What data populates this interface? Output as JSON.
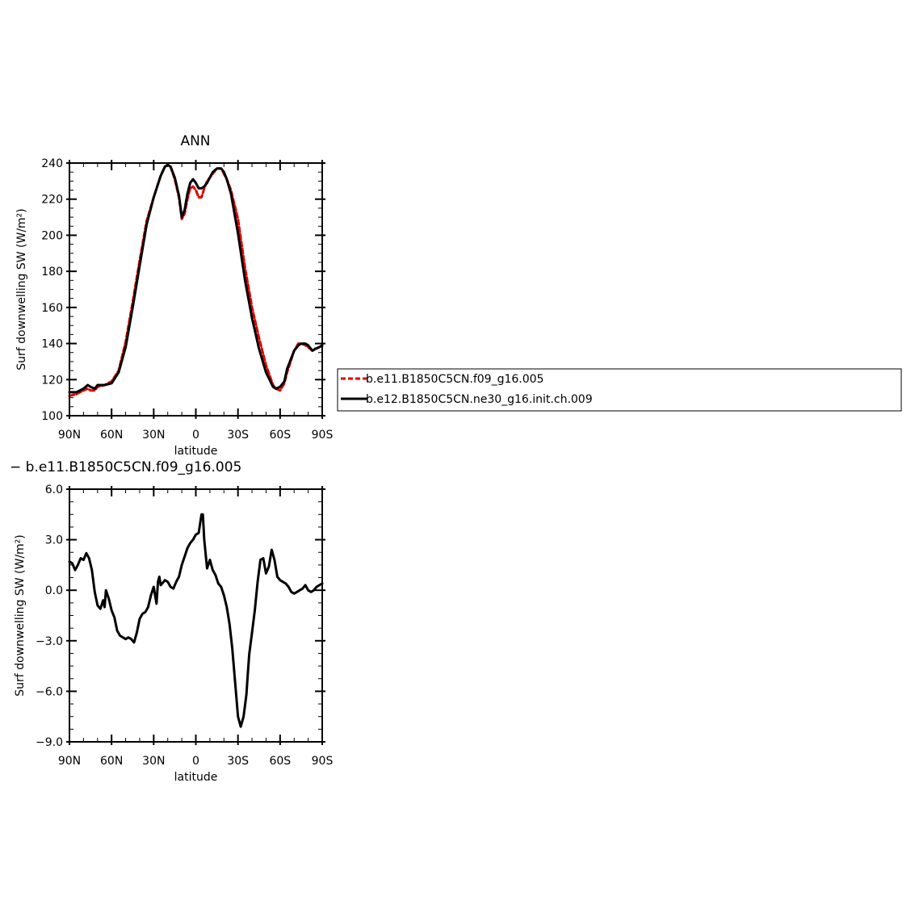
{
  "chart_data": [
    {
      "type": "line",
      "title": "ANN",
      "xlabel": "latitude",
      "ylabel": "Surf downwelling SW (W/m²)",
      "xlim": [
        90,
        -90
      ],
      "ylim": [
        100,
        240
      ],
      "xticks": [
        90,
        60,
        30,
        0,
        -30,
        -60,
        -90
      ],
      "xtick_labels": [
        "90N",
        "60N",
        "30N",
        "0",
        "30S",
        "60S",
        "90S"
      ],
      "yticks": [
        100,
        120,
        140,
        160,
        180,
        200,
        220,
        240
      ],
      "ytick_labels": [
        "100",
        "120",
        "140",
        "160",
        "180",
        "200",
        "220",
        "240"
      ],
      "grid": false,
      "legend_position": "right",
      "series": [
        {
          "name": "b.e11.B1850C5CN.f09_g16.005",
          "color": "#e00000",
          "dash": "dashed",
          "x": [
            90,
            85,
            80,
            77,
            75,
            72,
            70,
            65,
            60,
            55,
            50,
            45,
            40,
            35,
            30,
            25,
            22,
            20,
            18,
            15,
            12,
            10,
            8,
            6,
            4,
            2,
            0,
            -2,
            -4,
            -6,
            -8,
            -10,
            -12,
            -15,
            -18,
            -20,
            -22,
            -25,
            -30,
            -35,
            -40,
            -45,
            -50,
            -55,
            -57,
            -60,
            -63,
            -65,
            -70,
            -73,
            -75,
            -78,
            -80,
            -83,
            -85,
            -88,
            -90
          ],
          "y": [
            111,
            112,
            114,
            115,
            114,
            114,
            116,
            117,
            119,
            125,
            141,
            163,
            186,
            208,
            221,
            233,
            238,
            239,
            238,
            231,
            221,
            209,
            212,
            220,
            226,
            227,
            225,
            221,
            221,
            226,
            230,
            232,
            234,
            237,
            237,
            234,
            231,
            225,
            209,
            182,
            160,
            143,
            128,
            117,
            115,
            114,
            118,
            124,
            136,
            140,
            140,
            139,
            138,
            136,
            137,
            138,
            139
          ]
        },
        {
          "name": "b.e12.B1850C5CN.ne30_g16.init.ch.009",
          "color": "#000000",
          "dash": "solid",
          "x": [
            90,
            85,
            80,
            77,
            75,
            72,
            70,
            65,
            60,
            55,
            50,
            45,
            40,
            35,
            30,
            25,
            22,
            20,
            18,
            15,
            12,
            10,
            8,
            6,
            4,
            2,
            0,
            -2,
            -4,
            -6,
            -8,
            -10,
            -12,
            -15,
            -18,
            -20,
            -22,
            -25,
            -30,
            -35,
            -40,
            -45,
            -50,
            -55,
            -57,
            -60,
            -63,
            -65,
            -70,
            -73,
            -75,
            -78,
            -80,
            -83,
            -85,
            -88,
            -90
          ],
          "y": [
            113,
            113,
            115,
            117,
            116,
            115,
            117,
            117,
            118,
            124,
            138,
            160,
            183,
            206,
            221,
            233,
            238,
            239,
            238,
            232,
            222,
            210,
            214,
            223,
            229,
            231,
            229,
            226,
            226,
            227,
            229,
            232,
            235,
            237,
            237,
            235,
            231,
            223,
            201,
            175,
            154,
            137,
            124,
            116,
            115,
            116,
            119,
            126,
            136,
            139,
            140,
            140,
            139,
            136,
            137,
            138,
            139
          ]
        }
      ]
    },
    {
      "type": "line",
      "title": "− b.e11.B1850C5CN.f09_g16.005",
      "xlabel": "latitude",
      "ylabel": "Surf downwelling SW (W/m²)",
      "xlim": [
        90,
        -90
      ],
      "ylim": [
        -9.0,
        6.0
      ],
      "xticks": [
        90,
        60,
        30,
        0,
        -30,
        -60,
        -90
      ],
      "xtick_labels": [
        "90N",
        "60N",
        "30N",
        "0",
        "30S",
        "60S",
        "90S"
      ],
      "yticks": [
        -9.0,
        -6.0,
        -3.0,
        0.0,
        3.0,
        6.0
      ],
      "ytick_labels": [
        "−9.0",
        "−6.0",
        "−3.0",
        "0.0",
        "3.0",
        "6.0"
      ],
      "grid": false,
      "series": [
        {
          "color": "#000000",
          "dash": "solid",
          "x": [
            90,
            88,
            86,
            84,
            82,
            80,
            78,
            76,
            74,
            72,
            70,
            68,
            66,
            65,
            64,
            62,
            60,
            58,
            56,
            54,
            52,
            50,
            48,
            46,
            44,
            42,
            40,
            38,
            36,
            34,
            32,
            30,
            28,
            27,
            26,
            25,
            24,
            22,
            20,
            18,
            16,
            14,
            12,
            10,
            8,
            6,
            4,
            2,
            0,
            -2,
            -4,
            -5,
            -6,
            -8,
            -10,
            -12,
            -14,
            -16,
            -18,
            -20,
            -22,
            -24,
            -26,
            -28,
            -30,
            -32,
            -34,
            -36,
            -37,
            -38,
            -40,
            -42,
            -44,
            -46,
            -48,
            -50,
            -52,
            -54,
            -56,
            -58,
            -60,
            -62,
            -64,
            -66,
            -68,
            -70,
            -72,
            -74,
            -76,
            -78,
            -80,
            -82,
            -84,
            -86,
            -88,
            -90
          ],
          "y": [
            1.7,
            1.6,
            1.2,
            1.5,
            1.9,
            1.8,
            2.2,
            1.9,
            1.2,
            -0.1,
            -0.9,
            -1.1,
            -0.6,
            -1.0,
            0.0,
            -0.5,
            -1.2,
            -1.6,
            -2.4,
            -2.7,
            -2.8,
            -2.9,
            -2.8,
            -2.9,
            -3.1,
            -2.5,
            -1.7,
            -1.4,
            -1.3,
            -1.0,
            -0.3,
            0.2,
            -0.8,
            0.5,
            0.8,
            0.3,
            0.4,
            0.6,
            0.5,
            0.2,
            0.1,
            0.5,
            0.8,
            1.5,
            2.0,
            2.5,
            2.8,
            3.0,
            3.3,
            3.4,
            4.5,
            4.5,
            3.0,
            1.3,
            1.8,
            1.2,
            0.9,
            0.4,
            0.2,
            -0.3,
            -1.0,
            -2.0,
            -3.5,
            -5.5,
            -7.5,
            -8.1,
            -7.5,
            -6.2,
            -5.0,
            -3.8,
            -2.5,
            -1.2,
            0.5,
            1.8,
            1.9,
            1.0,
            1.4,
            2.4,
            1.8,
            0.8,
            0.6,
            0.5,
            0.4,
            0.2,
            -0.1,
            -0.2,
            -0.1,
            0.0,
            0.1,
            0.3,
            0.0,
            -0.1,
            0.0,
            0.2,
            0.3,
            0.4
          ]
        }
      ]
    }
  ]
}
